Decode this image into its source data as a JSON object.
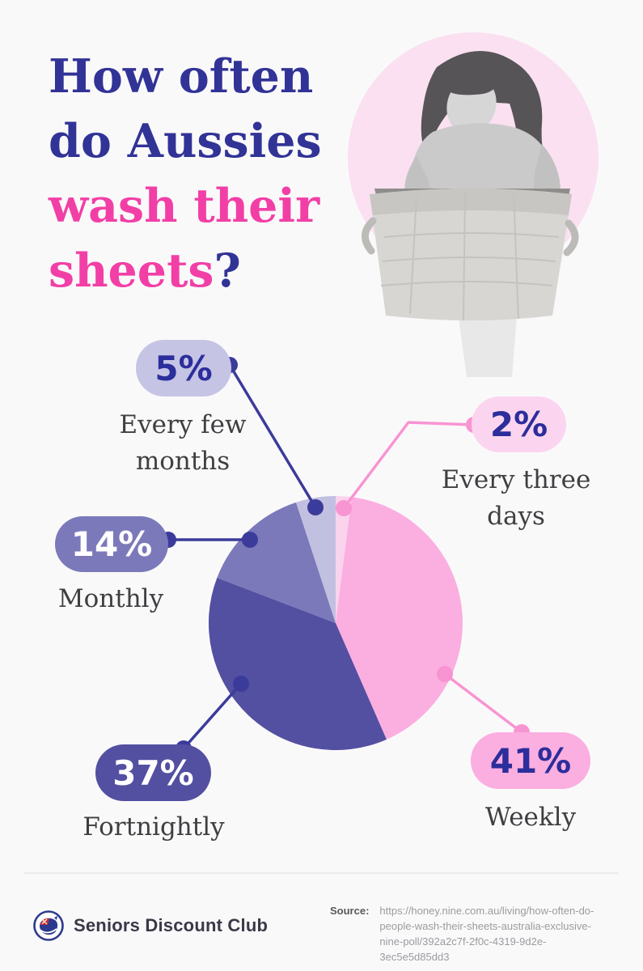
{
  "page": {
    "background": "#FAF9FA"
  },
  "header": {
    "title_line1": "How often",
    "title_line2": "do Aussies",
    "title_line3": "wash their",
    "title_line4": "sheets",
    "title_question_mark": "?",
    "title_color_primary": "#313396",
    "title_color_accent": "#F23FA6"
  },
  "hero": {
    "image_description": "black-and-white photo of a woman looking down into a large woven laundry basket",
    "circle_color": "#FAE0F0"
  },
  "chart_data": {
    "type": "pie",
    "title": "How often do Aussies wash their sheets?",
    "start_angle_deg": 0,
    "clockwise": true,
    "legend_position": "callouts-around-pie",
    "slices": [
      {
        "label": "Every three days",
        "value": 2,
        "color": "#FAD3EC"
      },
      {
        "label": "Weekly",
        "value": 41,
        "color": "#FBAEE0"
      },
      {
        "label": "Fortnightly",
        "value": 37,
        "color": "#534FA1"
      },
      {
        "label": "Monthly",
        "value": 14,
        "color": "#7C79BA"
      },
      {
        "label": "Every few months",
        "value": 5,
        "color": "#C2C0E0"
      }
    ]
  },
  "callouts": {
    "every_few_months": {
      "percent": "5%",
      "label_line1": "Every few",
      "label_line2": "months",
      "badge_color": "#C6C4E4"
    },
    "every_three_days": {
      "percent": "2%",
      "label_line1": "Every three",
      "label_line2": "days",
      "badge_color": "#FBD5EF"
    },
    "monthly": {
      "percent": "14%",
      "label": "Monthly",
      "badge_color": "#7C79BA"
    },
    "fortnightly": {
      "percent": "37%",
      "label": "Fortnightly",
      "badge_color": "#534FA1"
    },
    "weekly": {
      "percent": "41%",
      "label": "Weekly",
      "badge_color": "#FBAEE0"
    }
  },
  "footer": {
    "brand": "Seniors Discount Club",
    "source_label": "Source:",
    "source_url": "https://honey.nine.com.au/living/how-often-do-people-wash-their-sheets-australia-exclusive-nine-poll/392a2c7f-2f0c-4319-9d2e-3ec5e5d85dd3"
  }
}
